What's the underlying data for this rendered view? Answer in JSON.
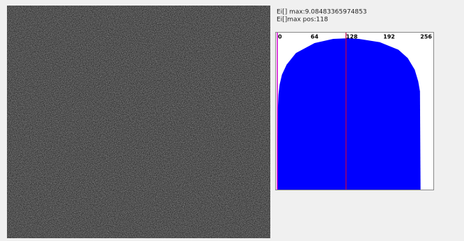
{
  "info": {
    "max_label": "Ei[] max:9.08483365974853",
    "pos_label": "Ei[]max pos:118"
  },
  "chart_data": {
    "type": "area",
    "color": "#0000ff",
    "marker_color": "#c0004a",
    "marker_x": 118,
    "x": [
      0,
      1,
      2,
      4,
      8,
      16,
      32,
      64,
      96,
      118,
      140,
      176,
      208,
      224,
      236,
      242,
      245,
      246
    ],
    "values": [
      0,
      4.9,
      5.7,
      6.3,
      6.9,
      7.5,
      8.2,
      8.8,
      9.05,
      9.08,
      9.05,
      8.85,
      8.4,
      7.9,
      7.2,
      6.5,
      5.9,
      0
    ],
    "xlim": [
      0,
      256
    ],
    "ylim": [
      0,
      9.3
    ],
    "xticks": [
      0,
      64,
      128,
      192,
      256
    ]
  }
}
